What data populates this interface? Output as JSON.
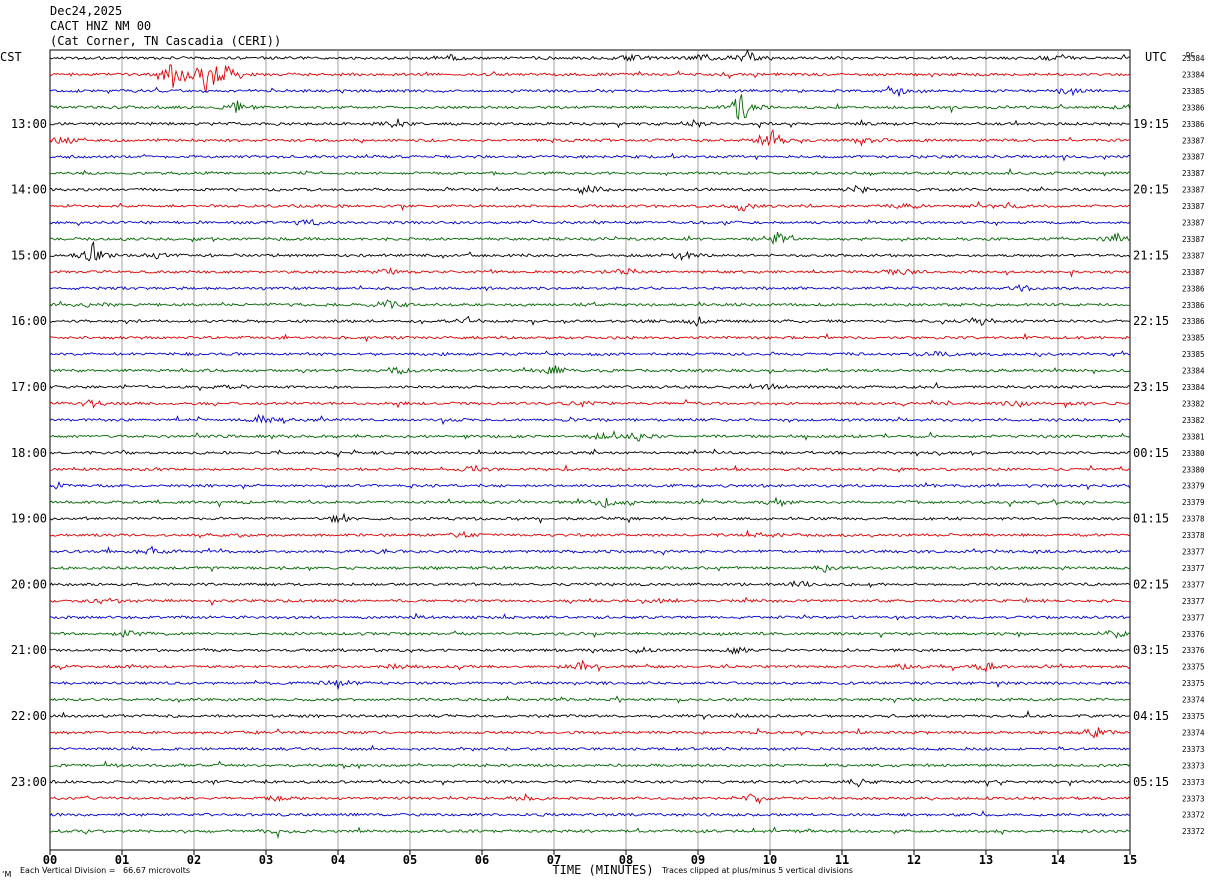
{
  "header": {
    "date": "Dec24,2025",
    "station": "CACT HNZ NM 00",
    "location": "(Cat Corner, TN Cascadia (CERI))"
  },
  "axes": {
    "left_label": "CST",
    "right_label": "UTC",
    "dc_label": "DC",
    "xlabel": "TIME (MINUTES)",
    "x_ticks": [
      "00",
      "01",
      "02",
      "03",
      "04",
      "05",
      "06",
      "07",
      "08",
      "09",
      "10",
      "11",
      "12",
      "13",
      "14",
      "15"
    ]
  },
  "footer": {
    "scale_note": "Each Vertical Division =   66.67 microvolts",
    "clip_note": "Traces clipped at plus/minus 5 vertical divisions",
    "corner_mark": "‘M"
  },
  "colors": {
    "trace_cycle": [
      "#000000",
      "#dd0000",
      "#0000cc",
      "#006600"
    ],
    "grid": "#888888"
  },
  "chart_data": {
    "type": "line",
    "title": "",
    "minutes_per_trace": 15,
    "x_range": [
      0,
      15
    ],
    "trace_count": 48,
    "left_hour_labels": [
      "13:00",
      "14:00",
      "15:00",
      "16:00",
      "17:00",
      "18:00",
      "19:00",
      "20:00",
      "21:00",
      "22:00",
      "23:00"
    ],
    "right_hour_labels": [
      "19:15",
      "20:15",
      "21:15",
      "22:15",
      "23:15",
      "00:15",
      "01:15",
      "02:15",
      "03:15",
      "04:15",
      "05:15"
    ],
    "hour_label_first_trace": 4,
    "hour_label_every": 4,
    "dc_values": [
      "23384",
      "23384",
      "23385",
      "23386",
      "23386",
      "23387",
      "23387",
      "23387",
      "23387",
      "23387",
      "23387",
      "23387",
      "23387",
      "23387",
      "23386",
      "23386",
      "23386",
      "23385",
      "23385",
      "23384",
      "23384",
      "23382",
      "23382",
      "23381",
      "23380",
      "23380",
      "23379",
      "23379",
      "23378",
      "23378",
      "23377",
      "23377",
      "23377",
      "23377",
      "23377",
      "23376",
      "23376",
      "23375",
      "23375",
      "23374",
      "23375",
      "23374",
      "23373",
      "23373",
      "23373",
      "23373",
      "23372",
      "23372"
    ],
    "events": [
      {
        "trace": 0,
        "minute": 5.6,
        "amp": 0.5
      },
      {
        "trace": 0,
        "minute": 8.1,
        "amp": 0.5
      },
      {
        "trace": 0,
        "minute": 9.1,
        "amp": 0.5
      },
      {
        "trace": 0,
        "minute": 9.7,
        "amp": 1.0
      },
      {
        "trace": 0,
        "minute": 14.0,
        "amp": 0.5
      },
      {
        "trace": 1,
        "minute": 1.7,
        "amp": 2.2
      },
      {
        "trace": 1,
        "minute": 2.2,
        "amp": 3.0
      },
      {
        "trace": 1,
        "minute": 2.5,
        "amp": 1.2
      },
      {
        "trace": 2,
        "minute": 11.8,
        "amp": 0.8
      },
      {
        "trace": 2,
        "minute": 14.2,
        "amp": 0.6
      },
      {
        "trace": 3,
        "minute": 2.6,
        "amp": 0.8
      },
      {
        "trace": 3,
        "minute": 9.6,
        "amp": 1.8
      },
      {
        "trace": 3,
        "minute": 15.0,
        "amp": 0.7
      },
      {
        "trace": 4,
        "minute": 4.8,
        "amp": 0.6
      },
      {
        "trace": 4,
        "minute": 8.9,
        "amp": 0.7
      },
      {
        "trace": 5,
        "minute": 0.2,
        "amp": 0.6
      },
      {
        "trace": 5,
        "minute": 10.0,
        "amp": 1.5
      },
      {
        "trace": 5,
        "minute": 11.3,
        "amp": 0.5
      },
      {
        "trace": 8,
        "minute": 7.5,
        "amp": 0.9
      },
      {
        "trace": 8,
        "minute": 11.2,
        "amp": 0.5
      },
      {
        "trace": 9,
        "minute": 9.6,
        "amp": 0.5
      },
      {
        "trace": 9,
        "minute": 11.9,
        "amp": 0.6
      },
      {
        "trace": 9,
        "minute": 13.3,
        "amp": 0.5
      },
      {
        "trace": 10,
        "minute": 3.6,
        "amp": 0.5
      },
      {
        "trace": 11,
        "minute": 10.1,
        "amp": 0.8
      },
      {
        "trace": 11,
        "minute": 14.8,
        "amp": 0.8
      },
      {
        "trace": 12,
        "minute": 0.6,
        "amp": 1.3
      },
      {
        "trace": 12,
        "minute": 1.5,
        "amp": 0.6
      },
      {
        "trace": 12,
        "minute": 8.8,
        "amp": 0.7
      },
      {
        "trace": 13,
        "minute": 4.7,
        "amp": 0.5
      },
      {
        "trace": 13,
        "minute": 8.0,
        "amp": 0.5
      },
      {
        "trace": 13,
        "minute": 11.8,
        "amp": 0.7
      },
      {
        "trace": 14,
        "minute": 13.5,
        "amp": 0.5
      },
      {
        "trace": 15,
        "minute": 4.7,
        "amp": 0.8
      },
      {
        "trace": 15,
        "minute": 0.6,
        "amp": 0.4
      },
      {
        "trace": 16,
        "minute": 5.8,
        "amp": 0.5
      },
      {
        "trace": 16,
        "minute": 9.0,
        "amp": 0.5
      },
      {
        "trace": 16,
        "minute": 12.9,
        "amp": 0.6
      },
      {
        "trace": 18,
        "minute": 12.3,
        "amp": 0.5
      },
      {
        "trace": 19,
        "minute": 4.8,
        "amp": 0.5
      },
      {
        "trace": 19,
        "minute": 7.0,
        "amp": 0.6
      },
      {
        "trace": 20,
        "minute": 2.5,
        "amp": 0.4
      },
      {
        "trace": 20,
        "minute": 10.0,
        "amp": 0.4
      },
      {
        "trace": 21,
        "minute": 0.6,
        "amp": 0.5
      },
      {
        "trace": 21,
        "minute": 7.4,
        "amp": 0.4
      },
      {
        "trace": 21,
        "minute": 13.4,
        "amp": 0.5
      },
      {
        "trace": 22,
        "minute": 3.0,
        "amp": 0.5
      },
      {
        "trace": 23,
        "minute": 7.7,
        "amp": 0.6
      },
      {
        "trace": 23,
        "minute": 8.2,
        "amp": 0.6
      },
      {
        "trace": 25,
        "minute": 5.9,
        "amp": 0.4
      },
      {
        "trace": 26,
        "minute": 0.1,
        "amp": 0.4
      },
      {
        "trace": 27,
        "minute": 7.7,
        "amp": 0.6
      },
      {
        "trace": 27,
        "minute": 10.1,
        "amp": 0.5
      },
      {
        "trace": 28,
        "minute": 4.0,
        "amp": 0.5
      },
      {
        "trace": 29,
        "minute": 5.7,
        "amp": 0.4
      },
      {
        "trace": 29,
        "minute": 9.9,
        "amp": 0.4
      },
      {
        "trace": 30,
        "minute": 1.4,
        "amp": 0.5
      },
      {
        "trace": 30,
        "minute": 4.6,
        "amp": 0.4
      },
      {
        "trace": 31,
        "minute": 10.8,
        "amp": 0.4
      },
      {
        "trace": 32,
        "minute": 10.4,
        "amp": 0.4
      },
      {
        "trace": 33,
        "minute": 0.8,
        "amp": 0.4
      },
      {
        "trace": 33,
        "minute": 8.5,
        "amp": 0.3
      },
      {
        "trace": 35,
        "minute": 1.1,
        "amp": 0.8
      },
      {
        "trace": 35,
        "minute": 14.8,
        "amp": 0.6
      },
      {
        "trace": 36,
        "minute": 8.2,
        "amp": 0.4
      },
      {
        "trace": 36,
        "minute": 9.5,
        "amp": 0.4
      },
      {
        "trace": 37,
        "minute": 4.8,
        "amp": 0.4
      },
      {
        "trace": 37,
        "minute": 7.4,
        "amp": 0.5
      },
      {
        "trace": 37,
        "minute": 11.8,
        "amp": 0.4
      },
      {
        "trace": 37,
        "minute": 13.0,
        "amp": 0.5
      },
      {
        "trace": 38,
        "minute": 4.0,
        "amp": 0.5
      },
      {
        "trace": 41,
        "minute": 14.5,
        "amp": 0.6
      },
      {
        "trace": 44,
        "minute": 11.2,
        "amp": 0.6
      },
      {
        "trace": 45,
        "minute": 3.1,
        "amp": 0.4
      },
      {
        "trace": 45,
        "minute": 6.6,
        "amp": 0.4
      },
      {
        "trace": 45,
        "minute": 9.8,
        "amp": 0.6
      },
      {
        "trace": 47,
        "minute": 3.2,
        "amp": 0.4
      }
    ]
  }
}
